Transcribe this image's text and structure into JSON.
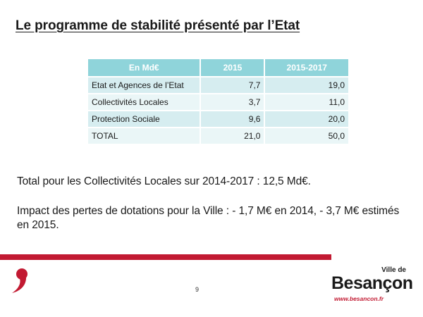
{
  "slide": {
    "title": "Le programme de stabilité présenté par l’Etat",
    "page_number": "9"
  },
  "table": {
    "headers": [
      "En Md€",
      "2015",
      "2015-2017"
    ],
    "rows": [
      {
        "label": "Etat et Agences de l’Etat",
        "y2015": "7,7",
        "y2015_2017": "19,0"
      },
      {
        "label": "Collectivités Locales",
        "y2015": "3,7",
        "y2015_2017": "11,0"
      },
      {
        "label": "Protection Sociale",
        "y2015": "9,6",
        "y2015_2017": "20,0"
      },
      {
        "label": "TOTAL",
        "y2015": "21,0",
        "y2015_2017": "50,0"
      }
    ]
  },
  "text": {
    "paragraph1": "Total pour les Collectivités Locales sur 2014-2017 : 12,5 Md€.",
    "paragraph2": "Impact des pertes de dotations pour la Ville : - 1,7 M€ en 2014, - 3,7 M€ estimés en 2015."
  },
  "brand": {
    "prefix": "Ville de",
    "name": "Besançon",
    "url": "www.besancon.fr",
    "accent_color": "#c21a32",
    "header_color": "#8fd4da"
  }
}
